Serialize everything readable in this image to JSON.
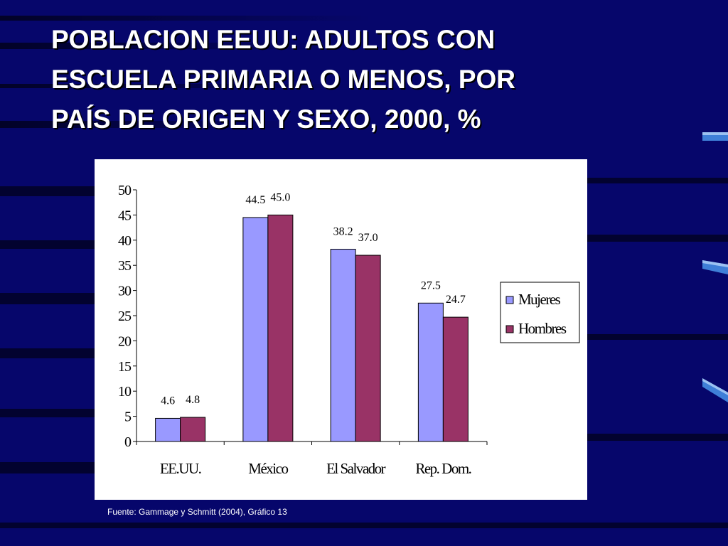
{
  "slide": {
    "title_lines": [
      "POBLACION EEUU: ADULTOS CON",
      "ESCUELA PRIMARIA O MENOS, POR",
      "PAÍS DE ORIGEN Y SEXO, 2000, %"
    ],
    "source": "Fuente: Gammage y Schmitt (2004), Gráfico 13",
    "background_color": "#06066b"
  },
  "chart_data": {
    "type": "bar",
    "categories": [
      "EE.UU.",
      "México",
      "El Salvador",
      "Rep. Dom."
    ],
    "series": [
      {
        "name": "Mujeres",
        "values": [
          4.6,
          44.5,
          38.2,
          27.5
        ],
        "labels": [
          "4.6",
          "44.5",
          "38.2",
          "27.5"
        ],
        "color": "#9999ff"
      },
      {
        "name": "Hombres",
        "values": [
          4.8,
          45.0,
          37.0,
          24.7
        ],
        "labels": [
          "4.8",
          "45.0",
          "37.0",
          "24.7"
        ],
        "color": "#993366"
      }
    ],
    "ylim": [
      0,
      50
    ],
    "yticks": [
      "0",
      "5",
      "10",
      "15",
      "20",
      "25",
      "30",
      "35",
      "40",
      "45",
      "50"
    ],
    "grid": false,
    "legend_position": "right"
  }
}
